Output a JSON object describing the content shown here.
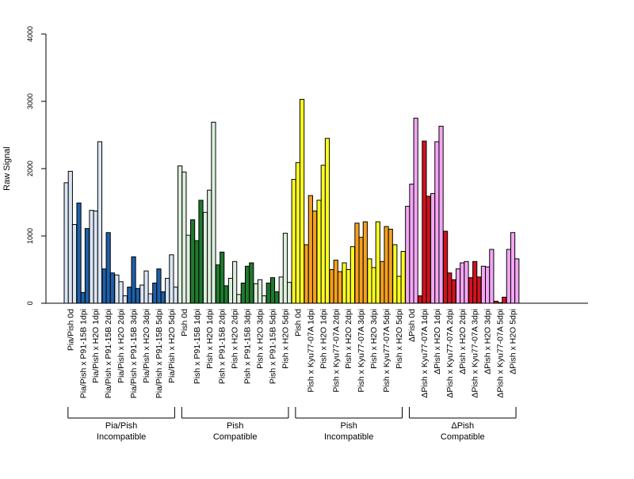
{
  "chart_data": {
    "type": "bar",
    "title": "",
    "xlabel": "",
    "ylabel": "Raw Signal",
    "ylim": [
      0,
      4000
    ],
    "yticks": [
      0,
      1000,
      2000,
      3000,
      4000
    ],
    "grid": false,
    "legend": "none",
    "bars_per_category": 3,
    "categories": [
      "Pia/Pish 0d",
      "Pia/Pish x P91-15B 1dpi",
      "Pia/Pish x H2O 1dpi",
      "Pia/Pish x P91-15B 2dpi",
      "Pia/Pish x H2O 2dpi",
      "Pia/Pish x P91-15B 3dpi",
      "Pia/Pish x H2O 3dpi",
      "Pia/Pish x P91-15B 5dpi",
      "Pia/Pish x H2O 5dpi",
      "Pish 0d",
      "Pish x P91-15B 1dpi",
      "Pish x H2O 1dpi",
      "Pish x P91-15B 2dpi",
      "Pish x H2O 2dpi",
      "Pish x P91-15B 3dpi",
      "Pish x H2O 3dpi",
      "Pish x P91-15B 5dpi",
      "Pish x H2O 5dpi",
      "Pish 0d",
      "Pish x Kyu77-07A 1dpi",
      "Pish x H2O 1dpi",
      "Pish x Kyu77-07A 2dpi",
      "Pish x H2O 2dpi",
      "Pish x Kyu77-07A 3dpi",
      "Pish x H2O 3dpi",
      "Pish x Kyu77-07A 5dpi",
      "Pish x H2O 5dpi",
      "ΔPish 0d",
      "ΔPish x Kyu77-07A 1dpi",
      "ΔPish x H2O 1dpi",
      "ΔPish x Kyu77-07A 2dpi",
      "ΔPish x H2O 2dpi",
      "ΔPish x Kyu77-07A 3dpi",
      "ΔPish x H2O 3dpi",
      "ΔPish x Kyu77-07A 5dpi",
      "ΔPish x H2O 5dpi"
    ],
    "bar_colors": [
      "#dbe6f4",
      "#1f5fa8",
      "#dbe6f4",
      "#1f5fa8",
      "#dbe6f4",
      "#1f5fa8",
      "#dbe6f4",
      "#1f5fa8",
      "#dbe6f4",
      "#dcefdc",
      "#1e7a2e",
      "#dcefdc",
      "#1e7a2e",
      "#dcefdc",
      "#1e7a2e",
      "#dcefdc",
      "#1e7a2e",
      "#dcefdc",
      "#ffff22",
      "#f5a020",
      "#ffff22",
      "#f5a020",
      "#ffff22",
      "#f5a020",
      "#ffff22",
      "#f5a020",
      "#ffff22",
      "#f4a6f4",
      "#d0121e",
      "#f4a6f4",
      "#d0121e",
      "#f4a6f4",
      "#d0121e",
      "#f4a6f4",
      "#d0121e",
      "#f4a6f4"
    ],
    "values": [
      [
        1790,
        1960,
        1170
      ],
      [
        1490,
        160,
        1110
      ],
      [
        1380,
        1370,
        2400
      ],
      [
        510,
        1050,
        450
      ],
      [
        420,
        320,
        110
      ],
      [
        240,
        690,
        220
      ],
      [
        270,
        480,
        140
      ],
      [
        300,
        510,
        170
      ],
      [
        370,
        720,
        240
      ],
      [
        2040,
        1950,
        1010
      ],
      [
        1240,
        930,
        1530
      ],
      [
        1350,
        1680,
        2690
      ],
      [
        570,
        760,
        260
      ],
      [
        370,
        620,
        130
      ],
      [
        300,
        550,
        600
      ],
      [
        290,
        350,
        110
      ],
      [
        300,
        380,
        170
      ],
      [
        390,
        1040,
        310
      ],
      [
        1840,
        2090,
        3030
      ],
      [
        870,
        1600,
        1370
      ],
      [
        1530,
        2050,
        2450
      ],
      [
        500,
        640,
        470
      ],
      [
        600,
        500,
        840
      ],
      [
        1190,
        980,
        1210
      ],
      [
        660,
        530,
        1210
      ],
      [
        620,
        1140,
        1100
      ],
      [
        870,
        400,
        770
      ],
      [
        1440,
        1770,
        2750
      ],
      [
        110,
        2410,
        1590
      ],
      [
        1630,
        2400,
        2630
      ],
      [
        1070,
        450,
        350
      ],
      [
        510,
        600,
        620
      ],
      [
        380,
        620,
        390
      ],
      [
        550,
        540,
        800
      ],
      [
        30,
        10,
        90
      ],
      [
        800,
        1050,
        660
      ]
    ],
    "groups": [
      {
        "label_line1": "Pia/Pish",
        "label_line2": "Incompatible",
        "start": 0,
        "end": 8
      },
      {
        "label_line1": "Pish",
        "label_line2": "Compatible",
        "start": 9,
        "end": 17
      },
      {
        "label_line1": "Pish",
        "label_line2": "Incompatible",
        "start": 18,
        "end": 26
      },
      {
        "label_line1": "ΔPish",
        "label_line2": "Compatible",
        "start": 27,
        "end": 35
      }
    ]
  }
}
